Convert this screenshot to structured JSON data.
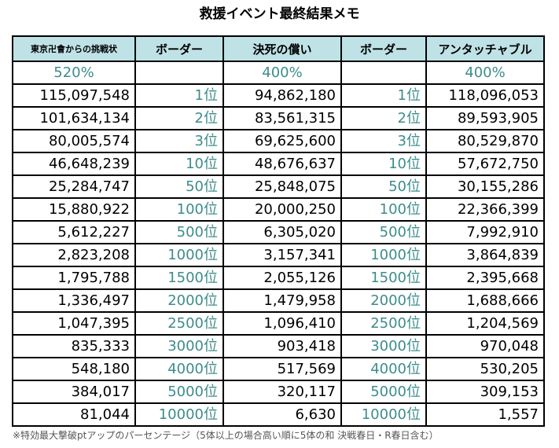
{
  "title": "救援イベント最終結果メモ",
  "headers": [
    "東京卍會からの挑戦状",
    "ボーダー",
    "決死の償い",
    "ボーダー",
    "アンタッチャブル"
  ],
  "percents": [
    "520%",
    "",
    "400%",
    "",
    "400%"
  ],
  "rows": [
    {
      "a": "115,097,548",
      "rank_a": "1位",
      "b": "94,862,180",
      "rank_b": "1位",
      "c": "118,096,053"
    },
    {
      "a": "101,634,134",
      "rank_a": "2位",
      "b": "83,561,315",
      "rank_b": "2位",
      "c": "89,593,905"
    },
    {
      "a": "80,005,574",
      "rank_a": "3位",
      "b": "69,625,600",
      "rank_b": "3位",
      "c": "80,529,870"
    },
    {
      "a": "46,648,239",
      "rank_a": "10位",
      "b": "48,676,637",
      "rank_b": "10位",
      "c": "57,672,750"
    },
    {
      "a": "25,284,747",
      "rank_a": "50位",
      "b": "25,848,075",
      "rank_b": "50位",
      "c": "30,155,286"
    },
    {
      "a": "15,880,922",
      "rank_a": "100位",
      "b": "20,000,250",
      "rank_b": "100位",
      "c": "22,366,399"
    },
    {
      "a": "5,612,227",
      "rank_a": "500位",
      "b": "6,305,020",
      "rank_b": "500位",
      "c": "7,992,910"
    },
    {
      "a": "2,823,208",
      "rank_a": "1000位",
      "b": "3,157,341",
      "rank_b": "1000位",
      "c": "3,864,839"
    },
    {
      "a": "1,795,788",
      "rank_a": "1500位",
      "b": "2,055,126",
      "rank_b": "1500位",
      "c": "2,395,668"
    },
    {
      "a": "1,336,497",
      "rank_a": "2000位",
      "b": "1,479,958",
      "rank_b": "2000位",
      "c": "1,688,666"
    },
    {
      "a": "1,047,395",
      "rank_a": "2500位",
      "b": "1,096,410",
      "rank_b": "2500位",
      "c": "1,204,569"
    },
    {
      "a": "835,333",
      "rank_a": "3000位",
      "b": "903,418",
      "rank_b": "3000位",
      "c": "970,048"
    },
    {
      "a": "548,180",
      "rank_a": "4000位",
      "b": "517,569",
      "rank_b": "4000位",
      "c": "530,205"
    },
    {
      "a": "384,017",
      "rank_a": "5000位",
      "b": "320,117",
      "rank_b": "5000位",
      "c": "309,153"
    },
    {
      "a": "81,044",
      "rank_a": "10000位",
      "b": "6,630",
      "rank_b": "10000位",
      "c": "1,557"
    }
  ],
  "footnote": "※特効最大撃破ptアップのパーセンテージ（5体以上の場合高い順に5体の和 決戦春日・R春日含む）",
  "colors": {
    "header_bg": "#bfe2e6",
    "accent_text": "#3d8c8c",
    "border": "#000000"
  }
}
